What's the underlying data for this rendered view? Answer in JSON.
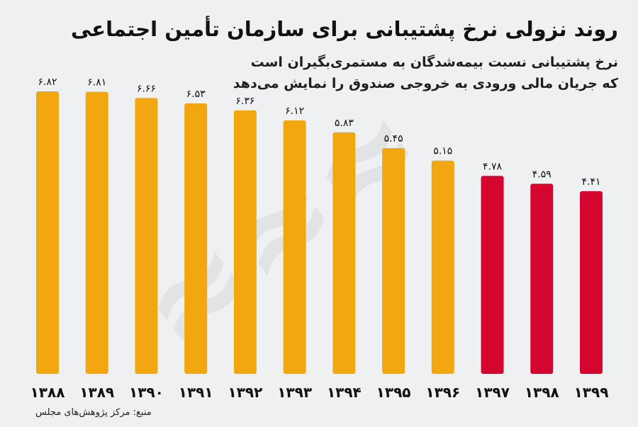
{
  "header": {
    "title": "روند نزولی نرخ پشتیبانی برای سازمان تأمین اجتماعی",
    "subtitle_line1": "نرخ پشتیبانی نسبت بیمه‌شدگان به مستمری‌بگیران است",
    "subtitle_line2": "که جریان مالی ورودی به خروجی صندوق را نمایش می‌دهد"
  },
  "source": "منبع: مرکز پژوهش‌های مجلس",
  "colors": {
    "background": "#eef0f1",
    "bar_primary": "#f2a710",
    "bar_highlight": "#d4052f",
    "text": "#111111"
  },
  "chart_data": {
    "type": "bar",
    "title": "روند نزولی نرخ پشتیبانی برای سازمان تأمین اجتماعی",
    "xlabel": "",
    "ylabel": "",
    "categories": [
      "۱۳۸۸",
      "۱۳۸۹",
      "۱۳۹۰",
      "۱۳۹۱",
      "۱۳۹۲",
      "۱۳۹۳",
      "۱۳۹۴",
      "۱۳۹۵",
      "۱۳۹۶",
      "۱۳۹۷",
      "۱۳۹۸",
      "۱۳۹۹"
    ],
    "values": [
      6.82,
      6.81,
      6.66,
      6.53,
      6.36,
      6.12,
      5.83,
      5.45,
      5.15,
      4.78,
      4.59,
      4.41
    ],
    "value_labels": [
      "۶.۸۲",
      "۶.۸۱",
      "۶.۶۶",
      "۶.۵۳",
      "۶.۳۶",
      "۶.۱۲",
      "۵.۸۳",
      "۵.۴۵",
      "۵.۱۵",
      "۴.۷۸",
      "۴.۵۹",
      "۴.۴۱"
    ],
    "highlight": [
      false,
      false,
      false,
      false,
      false,
      false,
      false,
      false,
      false,
      true,
      true,
      true
    ],
    "ylim": [
      0,
      7
    ],
    "grid": false,
    "legend": "none"
  }
}
